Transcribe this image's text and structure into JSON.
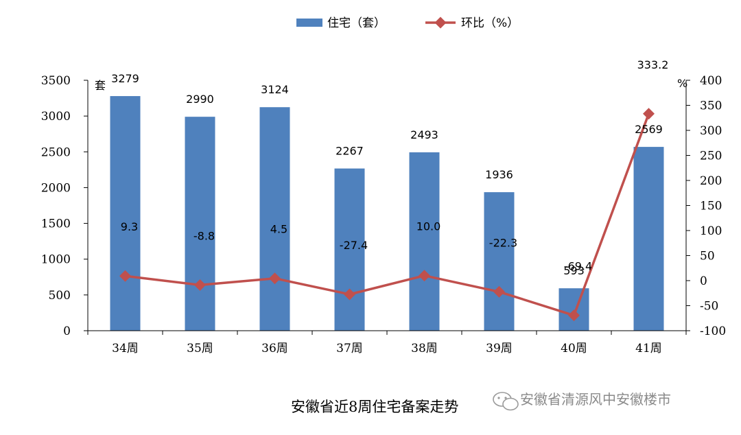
{
  "chart_data": {
    "type": "bar",
    "categories": [
      "34周",
      "35周",
      "36周",
      "37周",
      "38周",
      "39周",
      "40周",
      "41周"
    ],
    "series": [
      {
        "name": "住宅（套）",
        "kind": "bar",
        "axis": "left",
        "color": "#4F81BD",
        "values": [
          3279,
          2990,
          3124,
          2267,
          2493,
          1936,
          593,
          2569
        ]
      },
      {
        "name": "环比（%）",
        "kind": "line",
        "axis": "right",
        "color": "#C0504D",
        "values": [
          9.3,
          -8.8,
          4.5,
          -27.4,
          10.0,
          -22.3,
          -69.4,
          333.2
        ]
      }
    ],
    "bar_labels": [
      "3279",
      "2990",
      "3124",
      "2267",
      "2493",
      "1936",
      "593",
      "2569"
    ],
    "line_labels": [
      "9.3",
      "-8.8",
      "4.5",
      "-27.4",
      "10.0",
      "-22.3",
      "-69.4",
      "333.2"
    ],
    "left_axis": {
      "unit": "套",
      "ylim": [
        0,
        3500
      ],
      "ticks": [
        "0",
        "500",
        "1000",
        "1500",
        "2000",
        "2500",
        "3000",
        "3500"
      ]
    },
    "right_axis": {
      "unit": "%",
      "ylim": [
        -100,
        400
      ],
      "ticks": [
        "-100",
        "-50",
        "0",
        "50",
        "100",
        "150",
        "200",
        "250",
        "300",
        "350",
        "400"
      ]
    },
    "legend_position": "top",
    "grid": false,
    "caption": "安徽省近8周住宅备案走势"
  },
  "watermark": {
    "icon": "wechat-icon",
    "text": "安徽省清源风中安徽楼市"
  }
}
